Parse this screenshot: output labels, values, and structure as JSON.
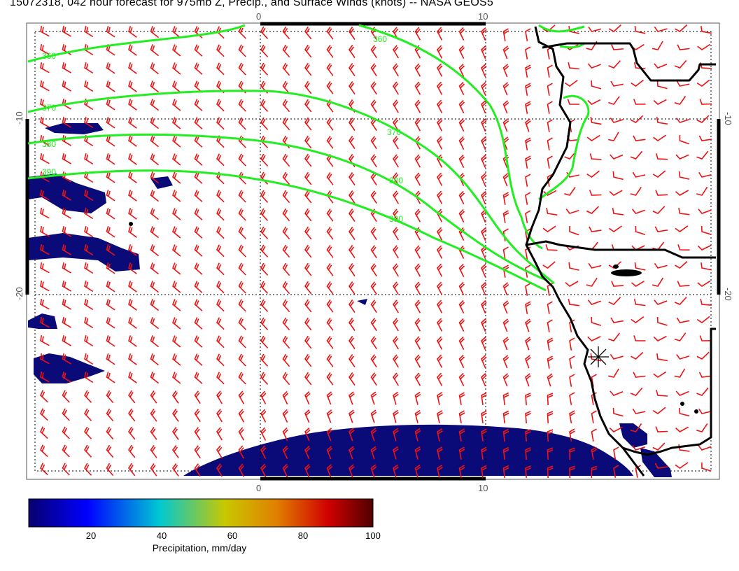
{
  "title": "15072318, 042 hour forecast for 975mb Z, Precip., and Surface Winds (knots) -- NASA GEOS5",
  "axes": {
    "top_ticks": [
      "0",
      "10"
    ],
    "bottom_ticks": [
      "0",
      "10"
    ],
    "left_ticks": [
      "-10",
      "-20"
    ],
    "right_ticks": [
      "-10",
      "-20"
    ]
  },
  "contours": {
    "labels": [
      "360",
      "370",
      "380",
      "390"
    ],
    "color": "#22ee22"
  },
  "map_colors": {
    "precip_fill": "#0a0a78",
    "wind_barb": "#ee1111",
    "coastline": "#000000"
  },
  "colorbar": {
    "title": "Precipitation, mm/day",
    "ticks": [
      "20",
      "40",
      "60",
      "80",
      "100"
    ],
    "gradient": [
      "#08006e",
      "#0000ff",
      "#00c8d2",
      "#c8c800",
      "#e08000",
      "#d00000",
      "#500000"
    ]
  }
}
